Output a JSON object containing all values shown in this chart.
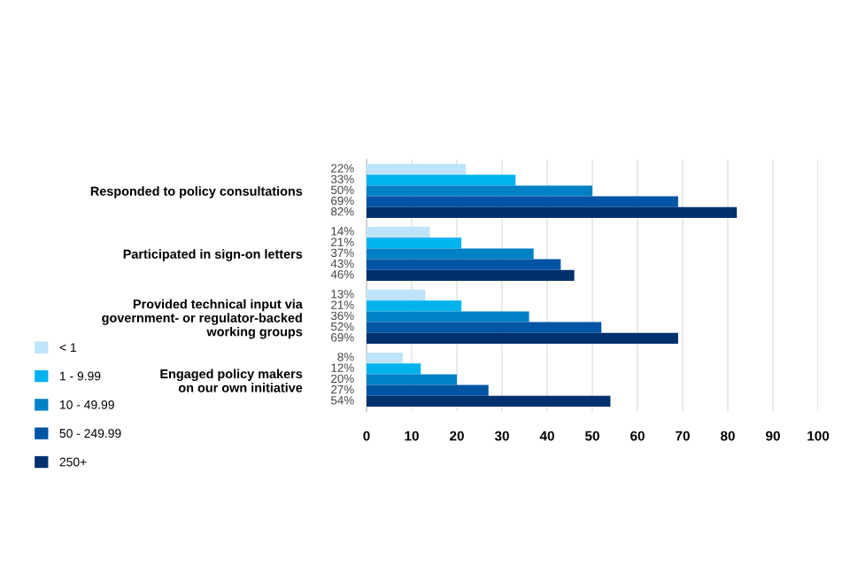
{
  "chart_data": {
    "type": "bar",
    "orientation": "horizontal",
    "categories": [
      "Responded to policy consultations",
      "Participated in sign-on letters",
      "Provided technical input via\ngovernment- or regulator-backed\nworking groups",
      "Engaged policy makers\non our own initiative"
    ],
    "series": [
      {
        "name": "< 1",
        "color": "#bde4f8",
        "values": [
          22,
          14,
          13,
          8
        ],
        "value_labels": [
          "22%",
          "14%",
          "13%",
          "8%"
        ]
      },
      {
        "name": "1 - 9.99",
        "color": "#00b3ee",
        "values": [
          33,
          21,
          21,
          12
        ],
        "value_labels": [
          "33%",
          "21%",
          "21%",
          "12%"
        ]
      },
      {
        "name": "10 - 49.99",
        "color": "#0081c6",
        "values": [
          50,
          37,
          36,
          20
        ],
        "value_labels": [
          "50%",
          "37%",
          "36%",
          "20%"
        ]
      },
      {
        "name": "50 - 249.99",
        "color": "#0055a5",
        "values": [
          69,
          43,
          52,
          27
        ],
        "value_labels": [
          "69%",
          "43%",
          "52%",
          "27%"
        ]
      },
      {
        "name": "250+",
        "color": "#00306e",
        "values": [
          82,
          46,
          69,
          54
        ],
        "value_labels": [
          "82%",
          "46%",
          "69%",
          "54%"
        ]
      }
    ],
    "xlim": [
      0,
      100
    ],
    "xticks": [
      0,
      10,
      20,
      30,
      40,
      50,
      60,
      70,
      80,
      90,
      100
    ],
    "grid": "x",
    "legend": "left"
  }
}
